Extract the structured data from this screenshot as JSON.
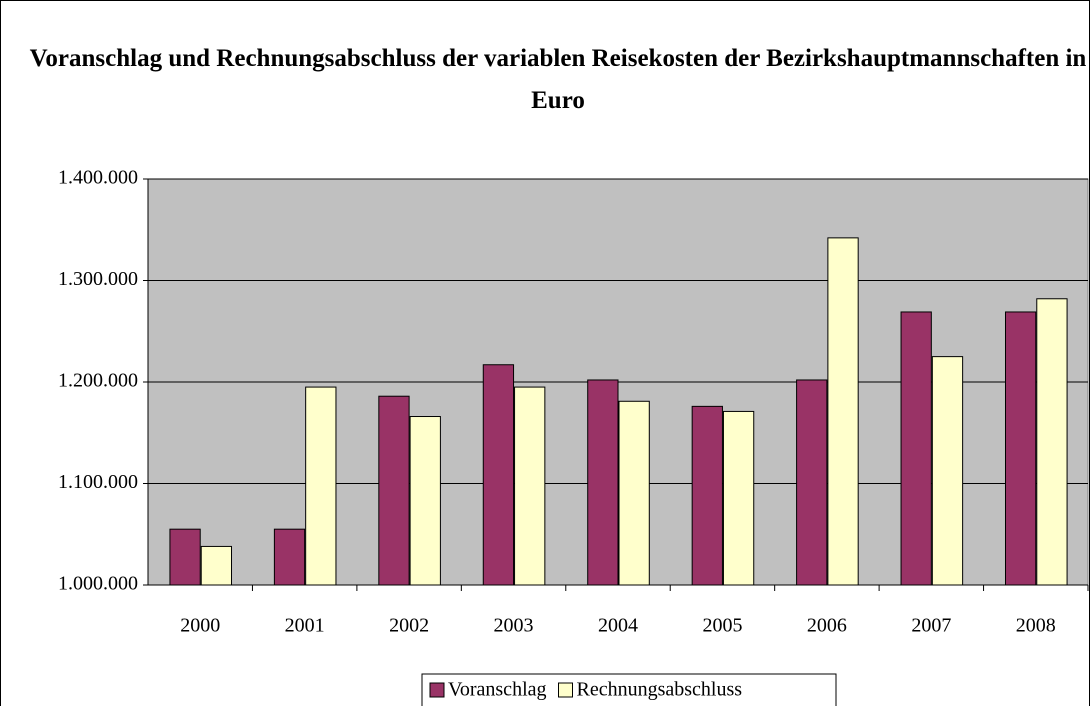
{
  "chart_data": {
    "type": "bar",
    "title": "Voranschlag und Rechnungsabschluss der variablen Reisekosten der Bezirkshauptmannschaften in Euro",
    "categories": [
      "2000",
      "2001",
      "2002",
      "2003",
      "2004",
      "2005",
      "2006",
      "2007",
      "2008"
    ],
    "series": [
      {
        "name": "Voranschlag",
        "color": "#993366",
        "values": [
          1055000,
          1055000,
          1186000,
          1217000,
          1202000,
          1176000,
          1202000,
          1269000,
          1269000
        ]
      },
      {
        "name": "Rechnungsabschluss",
        "color": "#FFFFCC",
        "values": [
          1038000,
          1195000,
          1166000,
          1195000,
          1181000,
          1171000,
          1342000,
          1225000,
          1282000
        ]
      }
    ],
    "ylim": [
      1000000,
      1400000
    ],
    "yticks": [
      {
        "value": 1000000,
        "label": "1.000.000"
      },
      {
        "value": 1100000,
        "label": "1.100.000"
      },
      {
        "value": 1200000,
        "label": "1.200.000"
      },
      {
        "value": 1300000,
        "label": "1.300.000"
      },
      {
        "value": 1400000,
        "label": "1.400.000"
      }
    ],
    "grid": true,
    "legend": "bottom"
  }
}
